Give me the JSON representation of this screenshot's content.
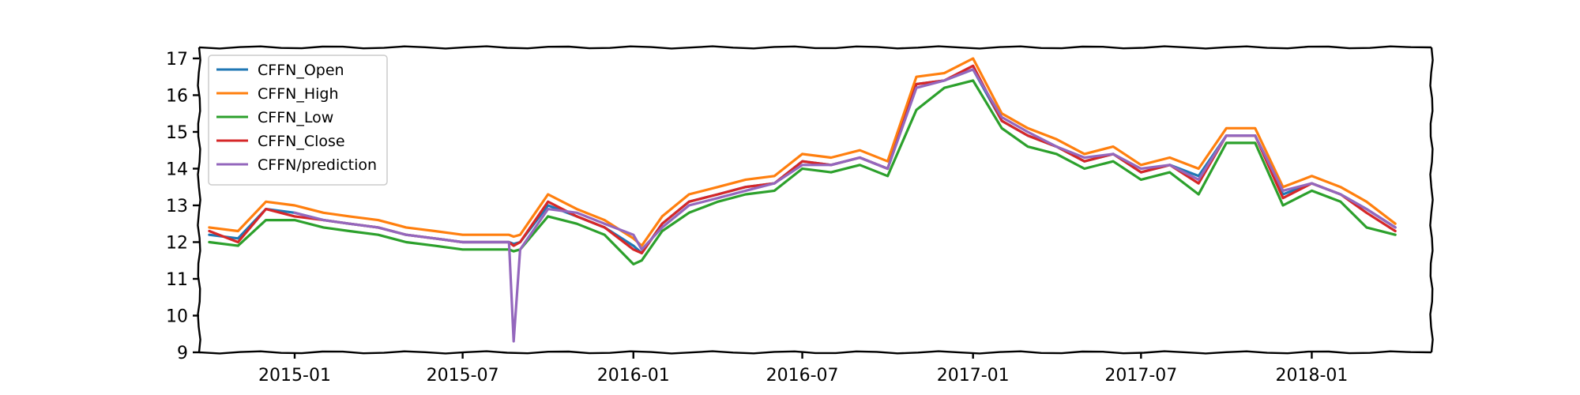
{
  "chart_data": {
    "type": "line",
    "title": "",
    "xlabel": "",
    "ylabel": "",
    "xlim": [
      "2014-09-20",
      "2018-05-10"
    ],
    "ylim": [
      9,
      17.3
    ],
    "grid": false,
    "legend_position": "upper-left",
    "style": "xkcd",
    "x_ticks": [
      "2015-01",
      "2015-07",
      "2016-01",
      "2016-07",
      "2017-01",
      "2017-07",
      "2018-01"
    ],
    "y_ticks": [
      9,
      10,
      11,
      12,
      13,
      14,
      15,
      16,
      17
    ],
    "x": [
      "2014-10-01",
      "2014-11-01",
      "2014-12-01",
      "2015-01-01",
      "2015-02-01",
      "2015-03-01",
      "2015-04-01",
      "2015-05-01",
      "2015-06-01",
      "2015-07-01",
      "2015-08-01",
      "2015-08-20",
      "2015-08-25",
      "2015-09-01",
      "2015-10-01",
      "2015-11-01",
      "2015-12-01",
      "2016-01-01",
      "2016-01-10",
      "2016-02-01",
      "2016-03-01",
      "2016-04-01",
      "2016-05-01",
      "2016-06-01",
      "2016-07-01",
      "2016-08-01",
      "2016-09-01",
      "2016-10-01",
      "2016-11-01",
      "2016-12-01",
      "2017-01-01",
      "2017-02-01",
      "2017-03-01",
      "2017-04-01",
      "2017-05-01",
      "2017-06-01",
      "2017-07-01",
      "2017-08-01",
      "2017-09-01",
      "2017-10-01",
      "2017-11-01",
      "2017-12-01",
      "2018-01-01",
      "2018-02-01",
      "2018-03-01",
      "2018-04-01"
    ],
    "series": [
      {
        "name": "CFFN_Open",
        "color": "#1f77b4",
        "values": [
          12.2,
          12.1,
          12.9,
          12.8,
          12.6,
          12.5,
          12.4,
          12.2,
          12.1,
          12.0,
          12.0,
          12.0,
          11.95,
          12.0,
          13.0,
          12.7,
          12.4,
          11.9,
          11.7,
          12.5,
          13.1,
          13.3,
          13.5,
          13.6,
          14.2,
          14.1,
          14.3,
          14.0,
          16.3,
          16.4,
          16.7,
          15.3,
          14.9,
          14.6,
          14.2,
          14.4,
          13.9,
          14.1,
          13.8,
          14.9,
          14.9,
          13.3,
          13.6,
          13.3,
          12.9,
          12.4
        ]
      },
      {
        "name": "CFFN_High",
        "color": "#ff7f0e",
        "values": [
          12.4,
          12.3,
          13.1,
          13.0,
          12.8,
          12.7,
          12.6,
          12.4,
          12.3,
          12.2,
          12.2,
          12.2,
          12.15,
          12.2,
          13.3,
          12.9,
          12.6,
          12.1,
          11.9,
          12.7,
          13.3,
          13.5,
          13.7,
          13.8,
          14.4,
          14.3,
          14.5,
          14.2,
          16.5,
          16.6,
          17.0,
          15.5,
          15.1,
          14.8,
          14.4,
          14.6,
          14.1,
          14.3,
          14.0,
          15.1,
          15.1,
          13.5,
          13.8,
          13.5,
          13.1,
          12.5
        ]
      },
      {
        "name": "CFFN_Low",
        "color": "#2ca02c",
        "values": [
          12.0,
          11.9,
          12.6,
          12.6,
          12.4,
          12.3,
          12.2,
          12.0,
          11.9,
          11.8,
          11.8,
          11.8,
          11.75,
          11.8,
          12.7,
          12.5,
          12.2,
          11.4,
          11.5,
          12.3,
          12.8,
          13.1,
          13.3,
          13.4,
          14.0,
          13.9,
          14.1,
          13.8,
          15.6,
          16.2,
          16.4,
          15.1,
          14.6,
          14.4,
          14.0,
          14.2,
          13.7,
          13.9,
          13.3,
          14.7,
          14.7,
          13.0,
          13.4,
          13.1,
          12.4,
          12.2
        ]
      },
      {
        "name": "CFFN_Close",
        "color": "#d62728",
        "values": [
          12.3,
          12.0,
          12.9,
          12.7,
          12.6,
          12.5,
          12.4,
          12.2,
          12.1,
          12.0,
          12.0,
          12.0,
          11.9,
          12.0,
          13.1,
          12.7,
          12.4,
          11.8,
          11.7,
          12.5,
          13.1,
          13.3,
          13.5,
          13.6,
          14.2,
          14.1,
          14.3,
          14.0,
          16.3,
          16.4,
          16.8,
          15.3,
          14.9,
          14.6,
          14.2,
          14.4,
          13.9,
          14.1,
          13.6,
          14.9,
          14.9,
          13.2,
          13.6,
          13.3,
          12.8,
          12.3
        ]
      },
      {
        "name": "CFFN/prediction",
        "color": "#9467bd",
        "values": [
          null,
          null,
          null,
          12.8,
          12.6,
          12.5,
          12.4,
          12.2,
          12.1,
          12.0,
          12.0,
          12.0,
          9.3,
          11.8,
          12.9,
          12.8,
          12.5,
          12.2,
          11.8,
          12.4,
          13.0,
          13.2,
          13.4,
          13.6,
          14.1,
          14.1,
          14.3,
          14.0,
          16.2,
          16.4,
          16.7,
          15.4,
          15.0,
          14.6,
          14.3,
          14.4,
          14.0,
          14.1,
          13.7,
          14.9,
          14.9,
          13.4,
          13.6,
          13.3,
          12.9,
          12.4
        ]
      }
    ]
  }
}
